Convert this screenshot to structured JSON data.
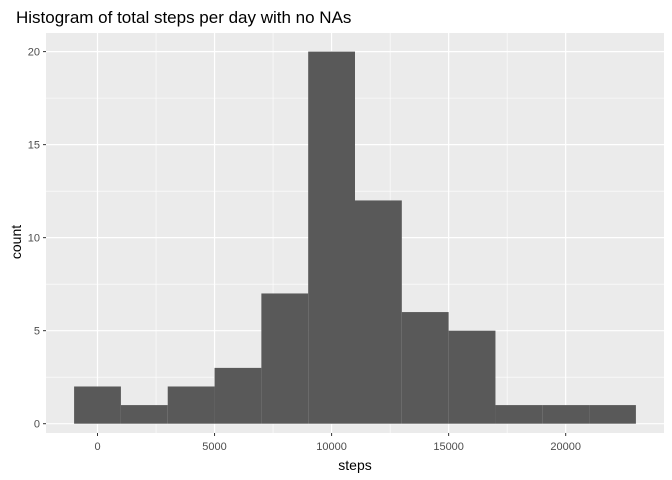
{
  "chart_data": {
    "type": "histogram",
    "title": "Histogram of total steps per day with no NAs",
    "xlabel": "steps",
    "ylabel": "count",
    "bin_width": 2000,
    "bins": [
      {
        "x0": -1000,
        "x1": 1000,
        "count": 2
      },
      {
        "x0": 1000,
        "x1": 3000,
        "count": 1
      },
      {
        "x0": 3000,
        "x1": 5000,
        "count": 2
      },
      {
        "x0": 5000,
        "x1": 7000,
        "count": 3
      },
      {
        "x0": 7000,
        "x1": 9000,
        "count": 7
      },
      {
        "x0": 9000,
        "x1": 11000,
        "count": 20
      },
      {
        "x0": 11000,
        "x1": 13000,
        "count": 12
      },
      {
        "x0": 13000,
        "x1": 15000,
        "count": 6
      },
      {
        "x0": 15000,
        "x1": 17000,
        "count": 5
      },
      {
        "x0": 17000,
        "x1": 19000,
        "count": 1
      },
      {
        "x0": 19000,
        "x1": 21000,
        "count": 1
      },
      {
        "x0": 21000,
        "x1": 23000,
        "count": 1
      }
    ],
    "x_ticks": [
      0,
      5000,
      10000,
      15000,
      20000
    ],
    "y_ticks": [
      0,
      5,
      10,
      15,
      20
    ],
    "xlim": [
      -2200,
      24200
    ],
    "ylim": [
      -0.5,
      21
    ],
    "grid": true,
    "colors": {
      "panel": "#EBEBEB",
      "grid_major": "#FFFFFF",
      "bar": "#595959",
      "tick": "#333333"
    }
  }
}
